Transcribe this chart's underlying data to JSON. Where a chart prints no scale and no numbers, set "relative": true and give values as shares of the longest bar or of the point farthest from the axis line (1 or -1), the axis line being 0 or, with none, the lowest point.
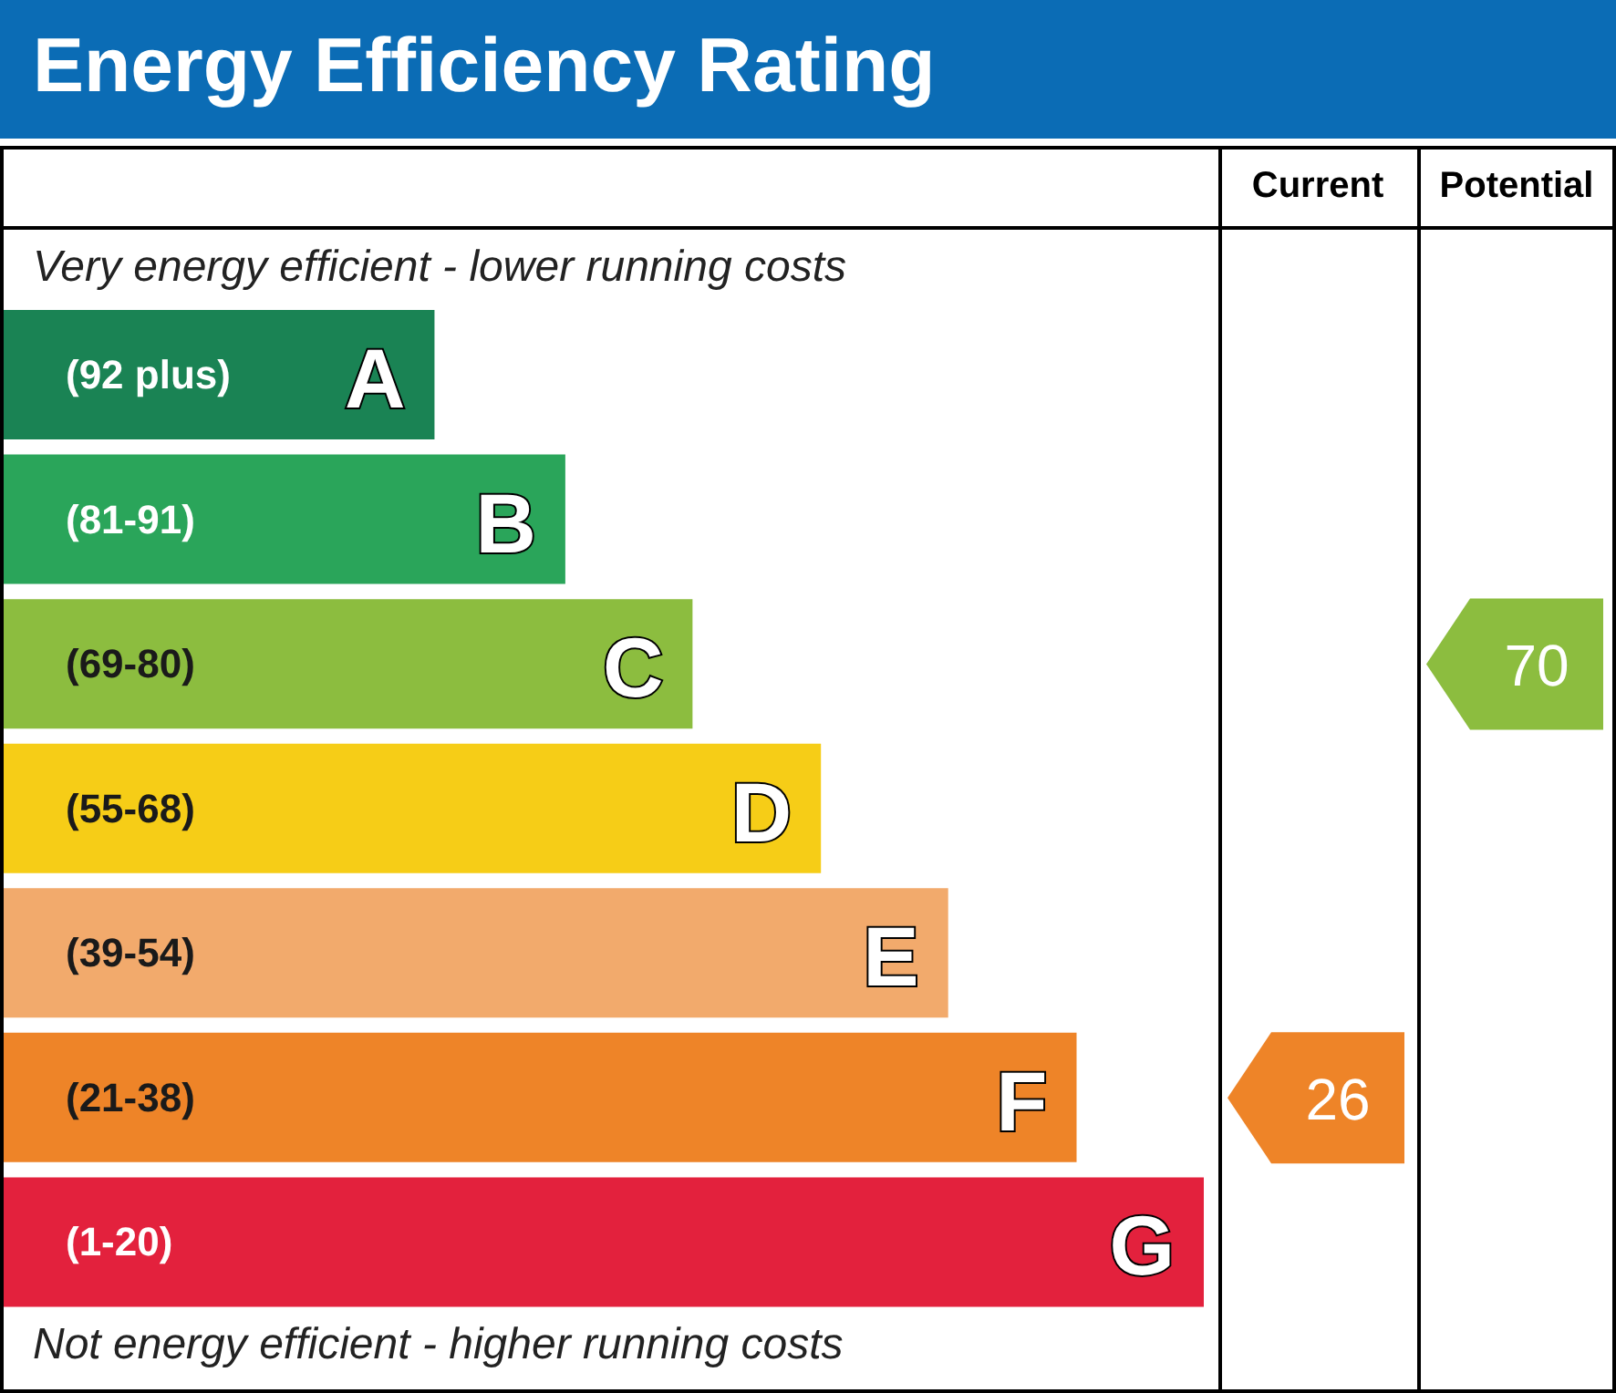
{
  "chart_data": {
    "type": "bar",
    "orientation": "horizontal",
    "relative": true,
    "title": "Energy Efficiency Rating",
    "categories": [
      "A",
      "B",
      "C",
      "D",
      "E",
      "F",
      "G"
    ],
    "values": [
      0.359,
      0.468,
      0.574,
      0.681,
      0.787,
      0.894,
      1
    ],
    "colors": [
      "#1a8354",
      "#2aa55a",
      "#8cbd3f",
      "#f6cd17",
      "#f2aa6c",
      "#ee8428",
      "#e3213d"
    ],
    "annotations": [
      "Very energy efficient - lower running costs",
      "Not energy efficient - higher running costs",
      "Current",
      "Potential",
      "26",
      "70",
      "(92 plus)",
      "(81-91)",
      "(69-80)",
      "(55-68)",
      "(39-54)",
      "(21-38)",
      "(1-20)"
    ]
  }
}
